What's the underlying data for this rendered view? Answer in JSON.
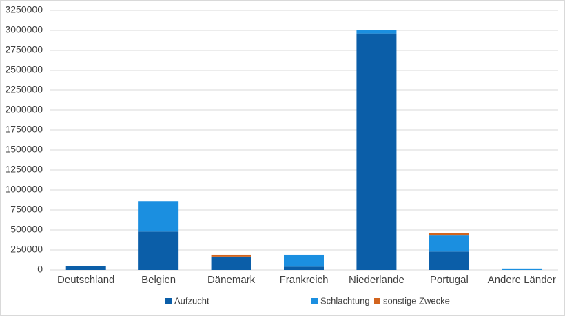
{
  "chart_data": {
    "type": "stacked-bar",
    "categories": [
      "Deutschland",
      "Belgien",
      "Dänemark",
      "Frankreich",
      "Niederlande",
      "Portugal",
      "Andere Länder"
    ],
    "series": [
      {
        "name": "Aufzucht",
        "color": "#0b5ea8",
        "values": [
          50000,
          480000,
          160000,
          40000,
          2960000,
          230000,
          0
        ]
      },
      {
        "name": "Schlachtung",
        "color": "#1b8fe0",
        "values": [
          0,
          380000,
          5000,
          150000,
          45000,
          200000,
          10000
        ]
      },
      {
        "name": "sonstige Zwecke",
        "color": "#d2641e",
        "values": [
          0,
          0,
          25000,
          0,
          0,
          30000,
          0
        ]
      }
    ],
    "ylim": [
      0,
      3250000
    ],
    "yticks": [
      0,
      250000,
      500000,
      750000,
      1000000,
      1250000,
      1500000,
      1750000,
      2000000,
      2250000,
      2500000,
      2750000,
      3000000,
      3250000
    ],
    "grid": true,
    "legend": "bottom"
  }
}
